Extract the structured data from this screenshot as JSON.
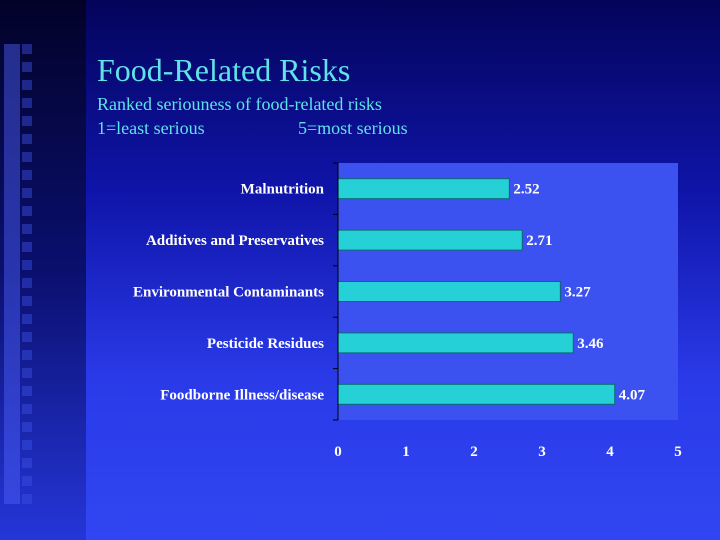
{
  "slide": {
    "title": "Food-Related Risks",
    "subtitle_line1": "Ranked seriouness of food-related risks",
    "subtitle_line2_left": "1=least serious",
    "subtitle_line2_right": "5=most serious"
  },
  "colors": {
    "bar": "#25d0d6",
    "bar_edge": "#0a6a70",
    "plot_bg": "#3b52f0",
    "text": "#ffffff",
    "title": "#5fe3e8"
  },
  "chart_data": {
    "type": "bar",
    "orientation": "horizontal",
    "categories": [
      "Malnutrition",
      "Additives and Preservatives",
      "Environmental Contaminants",
      "Pesticide Residues",
      "Foodborne Illness/disease"
    ],
    "values": [
      2.52,
      2.71,
      3.27,
      3.46,
      4.07
    ],
    "value_labels": [
      "2.52",
      "2.71",
      "3.27",
      "3.46",
      "4.07"
    ],
    "xlim": [
      0,
      5
    ],
    "xticks": [
      "0",
      "1",
      "2",
      "3",
      "4",
      "5"
    ],
    "title": "",
    "xlabel": "",
    "ylabel": "",
    "grid": false,
    "legend": "none"
  }
}
